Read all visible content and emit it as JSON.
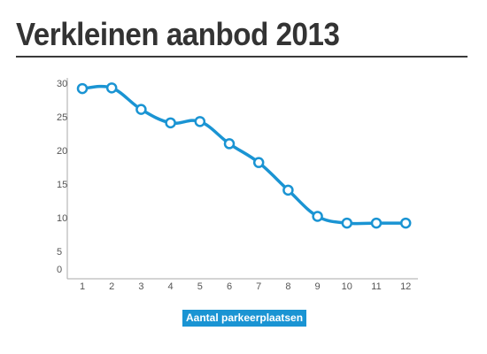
{
  "chart_data": {
    "type": "line",
    "title": "Verkleinen aanbod 2013",
    "x": [
      1,
      2,
      3,
      4,
      5,
      6,
      7,
      8,
      9,
      10,
      11,
      12
    ],
    "series": [
      {
        "name": "Aantal parkeerplaatsen",
        "color": "#1a94d3",
        "values": [
          29.2,
          29.3,
          26.1,
          24.1,
          24.3,
          21.0,
          18.2,
          14.1,
          10.2,
          9.2,
          9.2,
          9.2
        ]
      }
    ],
    "y_ticks": [
      0,
      5,
      10,
      15,
      20,
      25,
      30
    ],
    "x_ticks": [
      "1",
      "2",
      "3",
      "4",
      "5",
      "6",
      "7",
      "8",
      "9",
      "10",
      "11",
      "12"
    ],
    "ylim": [
      0,
      30
    ],
    "xlabel": "",
    "ylabel": "",
    "grid": false,
    "legend_position": "bottom-center"
  }
}
